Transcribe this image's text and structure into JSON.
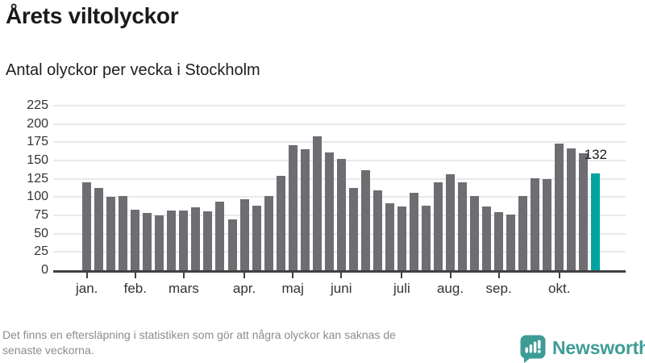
{
  "chart_data": {
    "type": "bar",
    "title": "Årets viltolyckor",
    "subtitle": "Antal olyckor per vecka i Stockholm",
    "series_name": "Antal olyckor per vecka",
    "x_unit": "vecka",
    "x": [
      1,
      2,
      3,
      4,
      5,
      6,
      7,
      8,
      9,
      10,
      11,
      12,
      13,
      14,
      15,
      16,
      17,
      18,
      19,
      20,
      21,
      22,
      23,
      24,
      25,
      26,
      27,
      28,
      29,
      30,
      31,
      32,
      33,
      34,
      35,
      36,
      37,
      38,
      39,
      40,
      41,
      42,
      43
    ],
    "values": [
      120,
      112,
      100,
      101,
      83,
      78,
      75,
      82,
      82,
      86,
      81,
      94,
      70,
      97,
      88,
      101,
      129,
      171,
      165,
      183,
      161,
      152,
      112,
      137,
      109,
      92,
      87,
      106,
      88,
      120,
      131,
      120,
      102,
      87,
      79,
      76,
      102,
      126,
      125,
      173,
      166,
      160,
      132
    ],
    "highlight": {
      "week": 43,
      "value": 132,
      "label": "132"
    },
    "y_ticks": [
      0,
      25,
      50,
      75,
      100,
      125,
      150,
      175,
      200,
      225
    ],
    "ylim": [
      0,
      225
    ],
    "grid": true,
    "legend": "none",
    "months": [
      {
        "label": "jan.",
        "week": 1
      },
      {
        "label": "feb.",
        "week": 5
      },
      {
        "label": "mars",
        "week": 9
      },
      {
        "label": "apr.",
        "week": 14
      },
      {
        "label": "maj",
        "week": 18
      },
      {
        "label": "juni",
        "week": 22
      },
      {
        "label": "juli",
        "week": 27
      },
      {
        "label": "aug.",
        "week": 31
      },
      {
        "label": "sep.",
        "week": 35
      },
      {
        "label": "okt.",
        "week": 40
      }
    ],
    "colors": {
      "bar": "#6d6d72",
      "highlight": "#00a3a0",
      "grid": "#e9e9e9",
      "axis": "#414141"
    }
  },
  "footer": {
    "note_lines": [
      "Det finns en eftersläpning i statistiken som gör att några olyckor kan saknas de",
      "senaste veckorna."
    ],
    "brand": "Newsworthy",
    "brand_color": "#3e9c96"
  }
}
